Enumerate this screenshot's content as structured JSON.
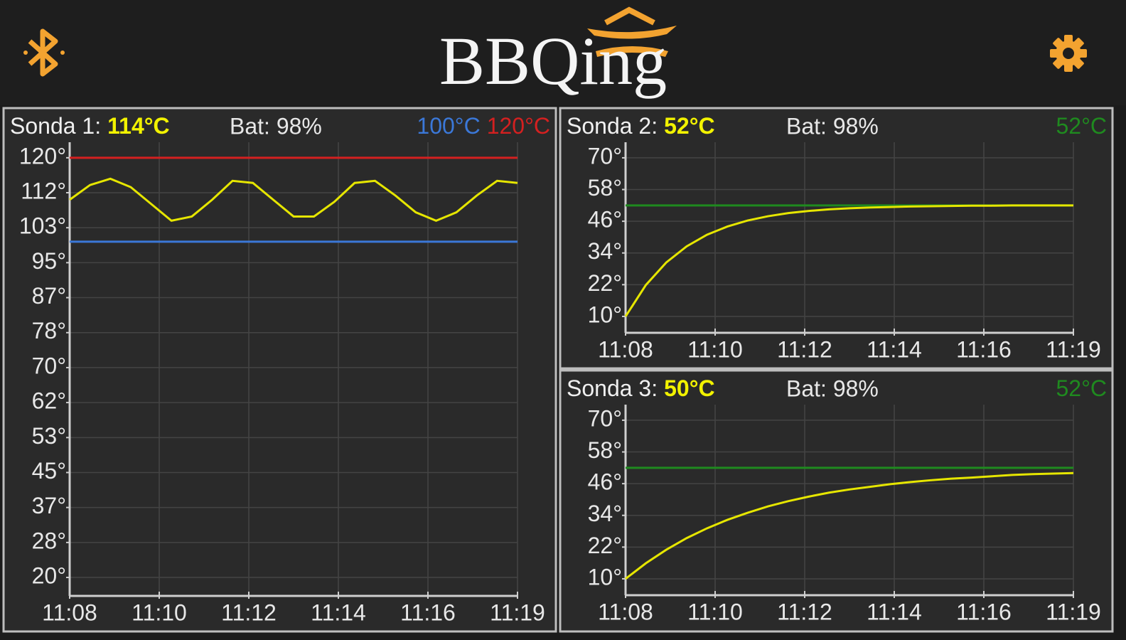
{
  "header": {
    "logo": "BBQing"
  },
  "chart_data": [
    {
      "type": "line",
      "label": "Sonda 1:",
      "current": "114°C",
      "battery": "Bat: 98%",
      "thresholds": [
        {
          "value": 100,
          "label": "100°C",
          "color": "#3b78d8"
        },
        {
          "value": 120,
          "label": "120°C",
          "color": "#d42020"
        }
      ],
      "x": [
        8,
        8.5,
        9,
        9.5,
        10,
        10.5,
        11,
        11.5,
        12,
        12.5,
        13,
        13.5,
        14,
        14.5,
        15,
        15.5,
        16,
        16.5,
        17,
        17.5,
        18,
        18.5,
        19
      ],
      "series": [
        {
          "color": "#e6e600",
          "values": [
            110,
            113.5,
            115,
            113,
            109,
            105,
            106,
            110,
            114.5,
            114,
            110,
            106,
            106,
            109.5,
            114,
            114.5,
            111,
            107,
            105,
            107,
            111,
            114.5,
            114
          ]
        }
      ],
      "xlim": [
        8,
        19
      ],
      "xticks": [
        {
          "value": 8,
          "label": "11:08"
        },
        {
          "value": 10.2,
          "label": "11:10"
        },
        {
          "value": 12.4,
          "label": "11:12"
        },
        {
          "value": 14.6,
          "label": "11:14"
        },
        {
          "value": 16.8,
          "label": "11:16"
        },
        {
          "value": 19,
          "label": "11:19"
        }
      ],
      "ylim": [
        15.6,
        123.7
      ],
      "yticks": [
        {
          "value": 20,
          "label": "20°"
        },
        {
          "value": 28.33,
          "label": "28°"
        },
        {
          "value": 36.67,
          "label": "37°"
        },
        {
          "value": 45,
          "label": "45°"
        },
        {
          "value": 53.33,
          "label": "53°"
        },
        {
          "value": 61.67,
          "label": "62°"
        },
        {
          "value": 70,
          "label": "70°"
        },
        {
          "value": 78.33,
          "label": "78°"
        },
        {
          "value": 86.67,
          "label": "87°"
        },
        {
          "value": 95,
          "label": "95°"
        },
        {
          "value": 103.33,
          "label": "103°"
        },
        {
          "value": 111.67,
          "label": "112°"
        },
        {
          "value": 120,
          "label": "120°"
        }
      ],
      "grid": true
    },
    {
      "type": "line",
      "label": "Sonda 2:",
      "current": "52°C",
      "battery": "Bat: 98%",
      "thresholds": [
        {
          "value": 52,
          "label": "52°C",
          "color": "#1f8a1f"
        }
      ],
      "x": [
        8,
        8.5,
        9,
        9.5,
        10,
        10.5,
        11,
        11.5,
        12,
        12.5,
        13,
        13.5,
        14,
        14.5,
        15,
        15.5,
        16,
        16.5,
        17,
        17.5,
        18,
        18.5,
        19
      ],
      "series": [
        {
          "color": "#e6e600",
          "values": [
            10,
            21.9,
            30.4,
            36.5,
            40.9,
            44.0,
            46.3,
            47.9,
            49.1,
            49.9,
            50.5,
            50.9,
            51.2,
            51.4,
            51.6,
            51.7,
            51.8,
            51.9,
            51.9,
            52,
            52,
            52,
            52
          ]
        }
      ],
      "xlim": [
        8,
        19
      ],
      "xticks": [
        {
          "value": 8,
          "label": "11:08"
        },
        {
          "value": 10.2,
          "label": "11:10"
        },
        {
          "value": 12.4,
          "label": "11:12"
        },
        {
          "value": 14.6,
          "label": "11:14"
        },
        {
          "value": 16.8,
          "label": "11:16"
        },
        {
          "value": 19,
          "label": "11:19"
        }
      ],
      "ylim": [
        3.8,
        75.9
      ],
      "yticks": [
        {
          "value": 10,
          "label": "10°"
        },
        {
          "value": 22,
          "label": "22°"
        },
        {
          "value": 34,
          "label": "34°"
        },
        {
          "value": 46,
          "label": "46°"
        },
        {
          "value": 58,
          "label": "58°"
        },
        {
          "value": 70,
          "label": "70°"
        }
      ],
      "grid": true
    },
    {
      "type": "line",
      "label": "Sonda 3:",
      "current": "50°C",
      "battery": "Bat: 98%",
      "thresholds": [
        {
          "value": 52,
          "label": "52°C",
          "color": "#1f8a1f"
        }
      ],
      "x": [
        8,
        8.5,
        9,
        9.5,
        10,
        10.5,
        11,
        11.5,
        12,
        12.5,
        13,
        13.5,
        14,
        14.5,
        15,
        15.5,
        16,
        16.5,
        17,
        17.5,
        18,
        18.5,
        19
      ],
      "series": [
        {
          "color": "#e6e600",
          "values": [
            10,
            15.9,
            21.0,
            25.4,
            29.1,
            32.3,
            35.0,
            37.4,
            39.4,
            41.1,
            42.6,
            43.8,
            44.8,
            45.8,
            46.6,
            47.3,
            47.9,
            48.3,
            48.8,
            49.3,
            49.6,
            49.8,
            50.0
          ]
        }
      ],
      "xlim": [
        8,
        19
      ],
      "xticks": [
        {
          "value": 8,
          "label": "11:08"
        },
        {
          "value": 10.2,
          "label": "11:10"
        },
        {
          "value": 12.4,
          "label": "11:12"
        },
        {
          "value": 14.6,
          "label": "11:14"
        },
        {
          "value": 16.8,
          "label": "11:16"
        },
        {
          "value": 19,
          "label": "11:19"
        }
      ],
      "ylim": [
        3.8,
        75.9
      ],
      "yticks": [
        {
          "value": 10,
          "label": "10°"
        },
        {
          "value": 22,
          "label": "22°"
        },
        {
          "value": 34,
          "label": "34°"
        },
        {
          "value": 46,
          "label": "46°"
        },
        {
          "value": 58,
          "label": "58°"
        },
        {
          "value": 70,
          "label": "70°"
        }
      ],
      "grid": true
    }
  ]
}
